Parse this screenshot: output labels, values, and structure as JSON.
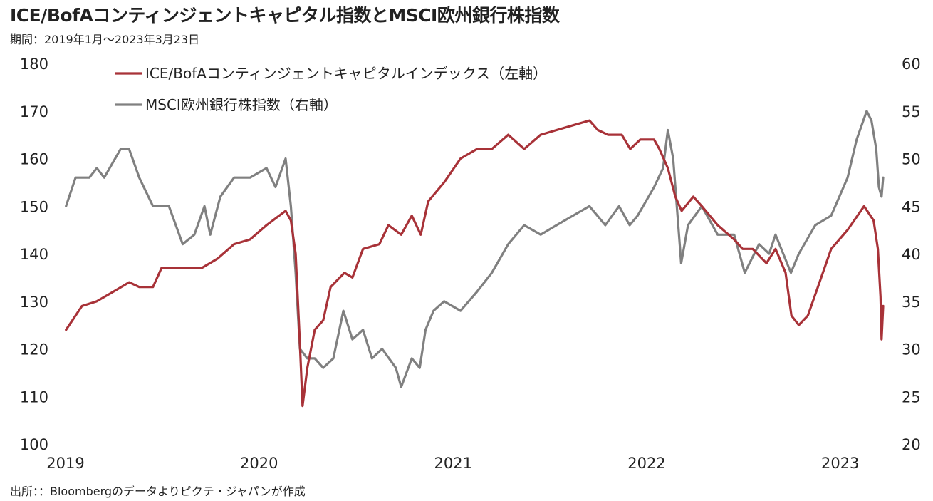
{
  "header": {
    "title": "ICE/BofAコンティンジェントキャピタル指数とMSCI欧州銀行株指数",
    "subtitle": "期間：2019年1月～2023年3月23日"
  },
  "footer": {
    "source": "出所：：Bloombergのデータよりピクテ・ジャパンが作成"
  },
  "chart_data": {
    "type": "line",
    "title": "ICE/BofAコンティンジェントキャピタル指数とMSCI欧州銀行株指数",
    "subtitle": "期間：2019年1月～2023年3月23日",
    "x_ticks": [
      "2019",
      "2020",
      "2021",
      "2022",
      "2023"
    ],
    "xlim": [
      "2019-01-01",
      "2023-03-23"
    ],
    "y_left": {
      "ticks": [
        "100",
        "110",
        "120",
        "130",
        "140",
        "150",
        "160",
        "170",
        "180"
      ],
      "ylim": [
        100,
        180
      ]
    },
    "y_right": {
      "ticks": [
        "20",
        "25",
        "30",
        "35",
        "40",
        "45",
        "50",
        "55",
        "60"
      ],
      "ylim": [
        20,
        60
      ]
    },
    "legend_position": "top-left",
    "grid": false,
    "series": [
      {
        "name": "ICE/BofAコンティンジェントキャピタルインデックス（左軸）",
        "axis": "left",
        "color": "#A83238",
        "points": [
          [
            "2019-01-02",
            124
          ],
          [
            "2019-02-01",
            129
          ],
          [
            "2019-03-01",
            130
          ],
          [
            "2019-04-01",
            132
          ],
          [
            "2019-05-01",
            134
          ],
          [
            "2019-05-20",
            133
          ],
          [
            "2019-06-15",
            133
          ],
          [
            "2019-07-01",
            137
          ],
          [
            "2019-08-15",
            137
          ],
          [
            "2019-09-15",
            137
          ],
          [
            "2019-10-15",
            139
          ],
          [
            "2019-11-15",
            142
          ],
          [
            "2019-12-15",
            143
          ],
          [
            "2020-01-15",
            146
          ],
          [
            "2020-02-20",
            149
          ],
          [
            "2020-03-01",
            147
          ],
          [
            "2020-03-10",
            140
          ],
          [
            "2020-03-18",
            121
          ],
          [
            "2020-03-23",
            108
          ],
          [
            "2020-04-01",
            116
          ],
          [
            "2020-04-15",
            124
          ],
          [
            "2020-05-01",
            126
          ],
          [
            "2020-05-15",
            133
          ],
          [
            "2020-06-10",
            136
          ],
          [
            "2020-06-25",
            135
          ],
          [
            "2020-07-15",
            141
          ],
          [
            "2020-08-15",
            142
          ],
          [
            "2020-09-01",
            146
          ],
          [
            "2020-09-25",
            144
          ],
          [
            "2020-10-15",
            148
          ],
          [
            "2020-11-01",
            144
          ],
          [
            "2020-11-15",
            151
          ],
          [
            "2020-12-15",
            155
          ],
          [
            "2021-01-15",
            160
          ],
          [
            "2021-02-15",
            162
          ],
          [
            "2021-03-15",
            162
          ],
          [
            "2021-04-15",
            165
          ],
          [
            "2021-05-15",
            162
          ],
          [
            "2021-06-15",
            165
          ],
          [
            "2021-07-15",
            166
          ],
          [
            "2021-08-15",
            167
          ],
          [
            "2021-09-15",
            168
          ],
          [
            "2021-10-01",
            166
          ],
          [
            "2021-10-20",
            165
          ],
          [
            "2021-11-15",
            165
          ],
          [
            "2021-12-01",
            162
          ],
          [
            "2021-12-20",
            164
          ],
          [
            "2022-01-15",
            164
          ],
          [
            "2022-01-25",
            162
          ],
          [
            "2022-02-10",
            158
          ],
          [
            "2022-02-24",
            152
          ],
          [
            "2022-03-08",
            149
          ],
          [
            "2022-03-30",
            152
          ],
          [
            "2022-04-15",
            150
          ],
          [
            "2022-05-15",
            146
          ],
          [
            "2022-06-15",
            143
          ],
          [
            "2022-07-01",
            141
          ],
          [
            "2022-07-20",
            141
          ],
          [
            "2022-08-15",
            138
          ],
          [
            "2022-09-01",
            141
          ],
          [
            "2022-09-20",
            136
          ],
          [
            "2022-10-01",
            127
          ],
          [
            "2022-10-15",
            125
          ],
          [
            "2022-11-01",
            127
          ],
          [
            "2022-11-20",
            133
          ],
          [
            "2022-12-15",
            141
          ],
          [
            "2023-01-15",
            145
          ],
          [
            "2023-02-15",
            150
          ],
          [
            "2023-03-05",
            147
          ],
          [
            "2023-03-13",
            141
          ],
          [
            "2023-03-18",
            131
          ],
          [
            "2023-03-20",
            122
          ],
          [
            "2023-03-23",
            129
          ]
        ]
      },
      {
        "name": "MSCI欧州銀行株指数（右軸）",
        "axis": "right",
        "color": "#808080",
        "points": [
          [
            "2019-01-02",
            45
          ],
          [
            "2019-01-20",
            48
          ],
          [
            "2019-02-15",
            48
          ],
          [
            "2019-03-01",
            49
          ],
          [
            "2019-03-15",
            48
          ],
          [
            "2019-04-15",
            51
          ],
          [
            "2019-05-01",
            51
          ],
          [
            "2019-05-20",
            48
          ],
          [
            "2019-06-15",
            45
          ],
          [
            "2019-07-15",
            45
          ],
          [
            "2019-08-10",
            41
          ],
          [
            "2019-09-01",
            42
          ],
          [
            "2019-09-20",
            45
          ],
          [
            "2019-10-01",
            42
          ],
          [
            "2019-10-20",
            46
          ],
          [
            "2019-11-15",
            48
          ],
          [
            "2019-12-15",
            48
          ],
          [
            "2020-01-15",
            49
          ],
          [
            "2020-02-01",
            47
          ],
          [
            "2020-02-20",
            50
          ],
          [
            "2020-03-01",
            45
          ],
          [
            "2020-03-10",
            38
          ],
          [
            "2020-03-18",
            30
          ],
          [
            "2020-04-01",
            29
          ],
          [
            "2020-04-15",
            29
          ],
          [
            "2020-05-01",
            28
          ],
          [
            "2020-05-20",
            29
          ],
          [
            "2020-06-08",
            34
          ],
          [
            "2020-06-25",
            31
          ],
          [
            "2020-07-15",
            32
          ],
          [
            "2020-08-01",
            29
          ],
          [
            "2020-08-20",
            30
          ],
          [
            "2020-09-15",
            28
          ],
          [
            "2020-09-25",
            26
          ],
          [
            "2020-10-15",
            29
          ],
          [
            "2020-10-30",
            28
          ],
          [
            "2020-11-10",
            32
          ],
          [
            "2020-11-25",
            34
          ],
          [
            "2020-12-15",
            35
          ],
          [
            "2021-01-15",
            34
          ],
          [
            "2021-02-15",
            36
          ],
          [
            "2021-03-15",
            38
          ],
          [
            "2021-04-15",
            41
          ],
          [
            "2021-05-15",
            43
          ],
          [
            "2021-06-15",
            42
          ],
          [
            "2021-07-15",
            43
          ],
          [
            "2021-08-15",
            44
          ],
          [
            "2021-09-15",
            45
          ],
          [
            "2021-10-15",
            43
          ],
          [
            "2021-11-10",
            45
          ],
          [
            "2021-11-30",
            43
          ],
          [
            "2021-12-15",
            44
          ],
          [
            "2022-01-15",
            47
          ],
          [
            "2022-02-01",
            49
          ],
          [
            "2022-02-10",
            53
          ],
          [
            "2022-02-20",
            50
          ],
          [
            "2022-03-07",
            39
          ],
          [
            "2022-03-20",
            43
          ],
          [
            "2022-04-15",
            45
          ],
          [
            "2022-05-15",
            42
          ],
          [
            "2022-06-15",
            42
          ],
          [
            "2022-07-05",
            38
          ],
          [
            "2022-08-01",
            41
          ],
          [
            "2022-08-20",
            40
          ],
          [
            "2022-09-01",
            42
          ],
          [
            "2022-09-30",
            38
          ],
          [
            "2022-10-15",
            40
          ],
          [
            "2022-11-15",
            43
          ],
          [
            "2022-12-15",
            44
          ],
          [
            "2023-01-15",
            48
          ],
          [
            "2023-02-01",
            52
          ],
          [
            "2023-02-20",
            55
          ],
          [
            "2023-03-01",
            54
          ],
          [
            "2023-03-10",
            51
          ],
          [
            "2023-03-15",
            47
          ],
          [
            "2023-03-20",
            46
          ],
          [
            "2023-03-23",
            48
          ]
        ]
      }
    ]
  }
}
